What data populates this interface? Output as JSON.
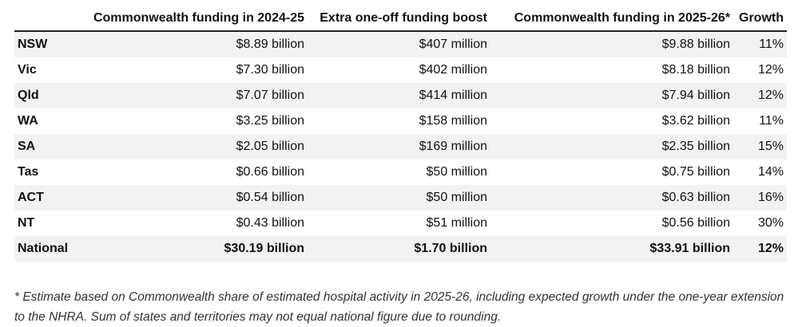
{
  "table": {
    "headers": [
      "",
      "Commonwealth funding in 2024-25",
      "Extra one-off funding boost",
      "Commonwealth funding in 2025-26*",
      "Growth"
    ],
    "rows": [
      {
        "state": "NSW",
        "funding_2024_25": "$8.89 billion",
        "boost": "$407 million",
        "funding_2025_26": "$9.88 billion",
        "growth": "11%"
      },
      {
        "state": "Vic",
        "funding_2024_25": "$7.30 billion",
        "boost": "$402 million",
        "funding_2025_26": "$8.18 billion",
        "growth": "12%"
      },
      {
        "state": "Qld",
        "funding_2024_25": "$7.07 billion",
        "boost": "$414 million",
        "funding_2025_26": "$7.94 billion",
        "growth": "12%"
      },
      {
        "state": "WA",
        "funding_2024_25": "$3.25 billion",
        "boost": "$158 million",
        "funding_2025_26": "$3.62 billion",
        "growth": "11%"
      },
      {
        "state": "SA",
        "funding_2024_25": "$2.05 billion",
        "boost": "$169 million",
        "funding_2025_26": "$2.35 billion",
        "growth": "15%"
      },
      {
        "state": "Tas",
        "funding_2024_25": "$0.66 billion",
        "boost": "$50 million",
        "funding_2025_26": "$0.75 billion",
        "growth": "14%"
      },
      {
        "state": "ACT",
        "funding_2024_25": "$0.54 billion",
        "boost": "$50 million",
        "funding_2025_26": "$0.63 billion",
        "growth": "16%"
      },
      {
        "state": "NT",
        "funding_2024_25": "$0.43 billion",
        "boost": "$51 million",
        "funding_2025_26": "$0.56 billion",
        "growth": "30%"
      },
      {
        "state": "National",
        "funding_2024_25": "$30.19 billion",
        "boost": "$1.70 billion",
        "funding_2025_26": "$33.91 billion",
        "growth": "12%"
      }
    ]
  },
  "footnote": "* Estimate based on Commonwealth share of estimated hospital activity in 2025-26, including expected growth under the one-year extension to the NHRA. Sum of states and territories may not equal national figure due to rounding.",
  "colors": {
    "row_shade": "#f2f2f2",
    "header_rule": "#222222",
    "text": "#111111",
    "footnote_text": "#333333"
  }
}
